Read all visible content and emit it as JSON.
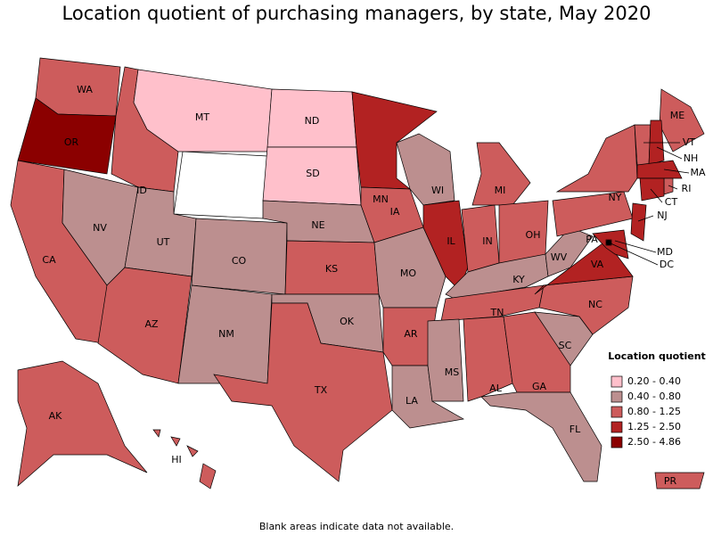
{
  "title": "Location quotient of purchasing managers, by state, May 2020",
  "legend": {
    "title": "Location quotient",
    "bins": [
      {
        "label": "0.20 - 0.40",
        "color": "#ffc0cb"
      },
      {
        "label": "0.40 - 0.80",
        "color": "#bc8f8f"
      },
      {
        "label": "0.80 - 1.25",
        "color": "#cd5c5c"
      },
      {
        "label": "1.25 - 2.50",
        "color": "#b22222"
      },
      {
        "label": "2.50 - 4.86",
        "color": "#8b0000"
      }
    ]
  },
  "states": [
    {
      "label": "WA",
      "bin": 2
    },
    {
      "label": "OR",
      "bin": 4
    },
    {
      "label": "CA",
      "bin": 2
    },
    {
      "label": "NV",
      "bin": 1
    },
    {
      "label": "ID",
      "bin": 2
    },
    {
      "label": "MT",
      "bin": 0
    },
    {
      "label": "UT",
      "bin": 1
    },
    {
      "label": "CO",
      "bin": 1
    },
    {
      "label": "AZ",
      "bin": 2
    },
    {
      "label": "NM",
      "bin": 1
    },
    {
      "label": "ND",
      "bin": 0
    },
    {
      "label": "SD",
      "bin": 0
    },
    {
      "label": "NE",
      "bin": 1
    },
    {
      "label": "KS",
      "bin": 2
    },
    {
      "label": "OK",
      "bin": 1
    },
    {
      "label": "TX",
      "bin": 2
    },
    {
      "label": "MN",
      "bin": 3
    },
    {
      "label": "IA",
      "bin": 2
    },
    {
      "label": "MO",
      "bin": 1
    },
    {
      "label": "AR",
      "bin": 2
    },
    {
      "label": "LA",
      "bin": 1
    },
    {
      "label": "WI",
      "bin": 1
    },
    {
      "label": "IL",
      "bin": 3
    },
    {
      "label": "MI",
      "bin": 2
    },
    {
      "label": "IN",
      "bin": 2
    },
    {
      "label": "OH",
      "bin": 2
    },
    {
      "label": "KY",
      "bin": 1
    },
    {
      "label": "TN",
      "bin": 2
    },
    {
      "label": "MS",
      "bin": 1
    },
    {
      "label": "AL",
      "bin": 2
    },
    {
      "label": "GA",
      "bin": 2
    },
    {
      "label": "FL",
      "bin": 1
    },
    {
      "label": "SC",
      "bin": 1
    },
    {
      "label": "NC",
      "bin": 2
    },
    {
      "label": "VA",
      "bin": 3
    },
    {
      "label": "WV",
      "bin": 1
    },
    {
      "label": "PA",
      "bin": 2
    },
    {
      "label": "NY",
      "bin": 2
    },
    {
      "label": "ME",
      "bin": 2
    },
    {
      "label": "VT",
      "bin": 2
    },
    {
      "label": "NH",
      "bin": 3
    },
    {
      "label": "MA",
      "bin": 3
    },
    {
      "label": "RI",
      "bin": 2
    },
    {
      "label": "CT",
      "bin": 3
    },
    {
      "label": "NJ",
      "bin": 3
    },
    {
      "label": "MD",
      "bin": 3
    },
    {
      "label": "DC",
      "bin": 4
    },
    {
      "label": "AK",
      "bin": 2
    },
    {
      "label": "HI",
      "bin": 2
    },
    {
      "label": "PR",
      "bin": 2
    }
  ],
  "note": "Blank areas indicate data not available."
}
